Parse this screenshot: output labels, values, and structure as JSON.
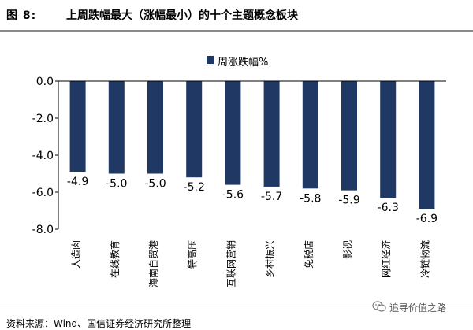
{
  "header": {
    "figure_no": "图 8:",
    "title": "上周跌幅最大（涨幅最小）的十个主题概念板块"
  },
  "colors": {
    "bar": "#1f3864",
    "axis": "#000000",
    "rule": "#8a8a8a"
  },
  "chart_data": {
    "type": "bar",
    "categories": [
      "人造肉",
      "在线教育",
      "海南自贸港",
      "特高压",
      "互联网营销",
      "乡村振兴",
      "免税店",
      "影视",
      "网红经济",
      "冷链物流"
    ],
    "series": [
      {
        "name": "周涨跌幅%",
        "values": [
          -4.9,
          -5.0,
          -5.0,
          -5.2,
          -5.6,
          -5.7,
          -5.8,
          -5.9,
          -6.3,
          -6.9
        ]
      }
    ],
    "data_labels": [
      "-4.9",
      "-5.0",
      "-5.0",
      "-5.2",
      "-5.6",
      "-5.7",
      "-5.8",
      "-5.9",
      "-6.3",
      "-6.9"
    ],
    "yticks": [
      "0.0",
      "-2.0",
      "-4.0",
      "-6.0",
      "-8.0"
    ],
    "ytick_values": [
      0,
      -2,
      -4,
      -6,
      -8
    ],
    "ylim": [
      -8,
      0
    ],
    "grid": false,
    "legend_position": "top-center"
  },
  "footer": {
    "source": "资料来源：Wind、国信证券经济研究所整理",
    "watermark": "追寻价值之路"
  }
}
